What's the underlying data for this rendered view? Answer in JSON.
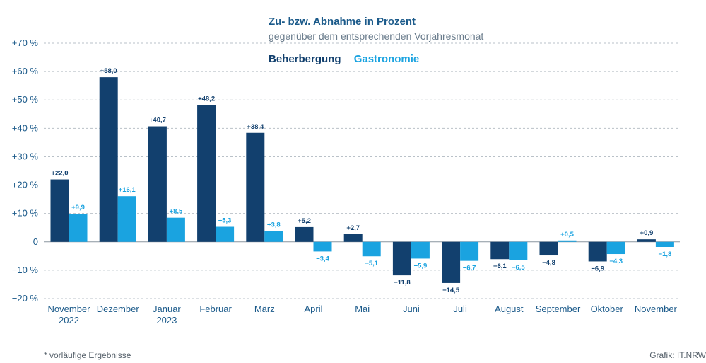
{
  "chart_data": {
    "type": "bar",
    "title": "Zu- bzw. Abnahme in Prozent",
    "subtitle": "gegenüber dem entsprechenden Vorjahresmonat",
    "categories": [
      "November",
      "Dezember",
      "Januar",
      "Februar",
      "März",
      "April",
      "Mai",
      "Juni",
      "Juli",
      "August",
      "September",
      "Oktober",
      "November"
    ],
    "category_sublabels": [
      "2022",
      "",
      "2023",
      "",
      "",
      "",
      "",
      "",
      "",
      "",
      "",
      "",
      ""
    ],
    "series": [
      {
        "name": "Beherbergung",
        "color": "#12406e",
        "values": [
          22.0,
          58.0,
          40.7,
          48.2,
          38.4,
          5.2,
          2.7,
          -11.8,
          -14.5,
          -6.1,
          -4.8,
          -6.9,
          0.9
        ],
        "labels": [
          "+22,0",
          "+58,0",
          "+40,7",
          "+48,2",
          "+38,4",
          "+5,2",
          "+2,7",
          "−11,8",
          "−14,5",
          "−6,1",
          "−4,8",
          "−6,9",
          "+0,9"
        ]
      },
      {
        "name": "Gastronomie",
        "color": "#1aa3e0",
        "values": [
          9.9,
          16.1,
          8.5,
          5.3,
          3.8,
          -3.4,
          -5.1,
          -5.9,
          -6.7,
          -6.5,
          0.5,
          -4.3,
          -1.8
        ],
        "labels": [
          "+9,9",
          "+16,1",
          "+8,5",
          "+5,3",
          "+3,8",
          "−3,4",
          "−5,1",
          "−5,9",
          "−6,7",
          "−6,5",
          "+0,5",
          "−4,3",
          "−1,8"
        ]
      }
    ],
    "y_ticks": [
      70,
      60,
      50,
      40,
      30,
      20,
      10,
      0,
      -10,
      -20
    ],
    "y_tick_labels": [
      "+70 %",
      "+60 %",
      "+50 %",
      "+40 %",
      "+30 %",
      "+20 %",
      "+10 %",
      "0",
      "−10 %",
      "−20 %"
    ],
    "ylim": [
      -20,
      70
    ],
    "grid": true,
    "legend_position": "top"
  },
  "footnote": "*  vorläufige Ergebnisse",
  "credit": "Grafik: IT.NRW"
}
